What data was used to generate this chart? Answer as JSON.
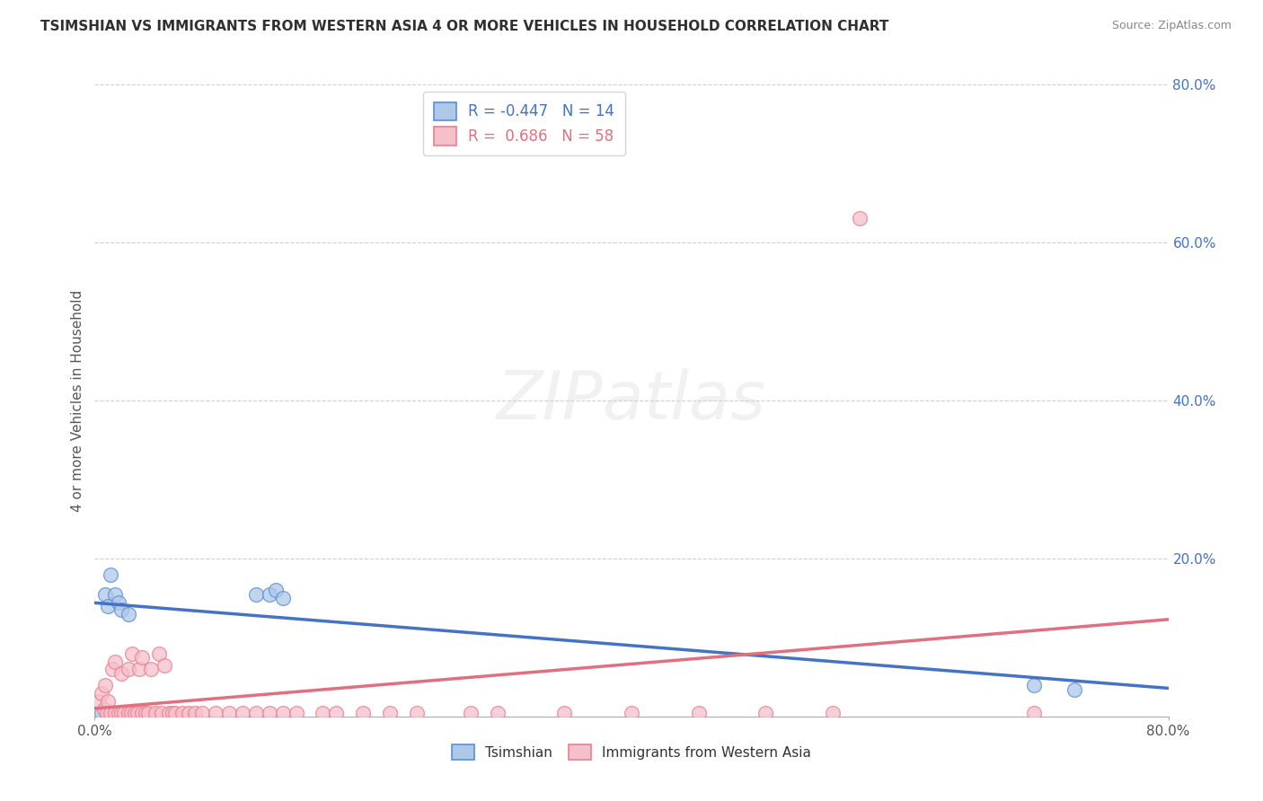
{
  "title": "TSIMSHIAN VS IMMIGRANTS FROM WESTERN ASIA 4 OR MORE VEHICLES IN HOUSEHOLD CORRELATION CHART",
  "source": "Source: ZipAtlas.com",
  "ylabel": "4 or more Vehicles in Household",
  "xlim": [
    0.0,
    0.8
  ],
  "ylim": [
    0.0,
    0.8
  ],
  "xtick_vals": [
    0.0,
    0.8
  ],
  "xtick_labels": [
    "0.0%",
    "80.0%"
  ],
  "ytick_vals_right": [
    0.2,
    0.4,
    0.6,
    0.8
  ],
  "ytick_labels_right": [
    "20.0%",
    "40.0%",
    "60.0%",
    "80.0%"
  ],
  "grid_vals": [
    0.2,
    0.4,
    0.6,
    0.8
  ],
  "series1_label": "Tsimshian",
  "series1_color": "#adc8e8",
  "series1_edge_color": "#5b8dd9",
  "series1_line_color": "#4472c4",
  "series1_R": -0.447,
  "series1_N": 14,
  "series2_label": "Immigrants from Western Asia",
  "series2_color": "#f5c0cb",
  "series2_edge_color": "#e8808e",
  "series2_line_color": "#e07080",
  "series2_R": 0.686,
  "series2_N": 58,
  "series1_x": [
    0.005,
    0.008,
    0.01,
    0.012,
    0.015,
    0.018,
    0.02,
    0.025,
    0.12,
    0.13,
    0.135,
    0.14,
    0.7,
    0.73
  ],
  "series1_y": [
    0.005,
    0.155,
    0.14,
    0.18,
    0.155,
    0.145,
    0.135,
    0.13,
    0.155,
    0.155,
    0.16,
    0.15,
    0.04,
    0.035
  ],
  "series2_x": [
    0.003,
    0.005,
    0.007,
    0.008,
    0.009,
    0.01,
    0.012,
    0.013,
    0.015,
    0.015,
    0.018,
    0.02,
    0.02,
    0.022,
    0.025,
    0.025,
    0.027,
    0.028,
    0.03,
    0.032,
    0.033,
    0.035,
    0.035,
    0.038,
    0.04,
    0.042,
    0.045,
    0.048,
    0.05,
    0.052,
    0.055,
    0.058,
    0.06,
    0.065,
    0.07,
    0.075,
    0.08,
    0.09,
    0.1,
    0.11,
    0.12,
    0.13,
    0.14,
    0.15,
    0.17,
    0.18,
    0.2,
    0.22,
    0.24,
    0.28,
    0.3,
    0.35,
    0.4,
    0.45,
    0.5,
    0.55,
    0.57,
    0.7
  ],
  "series2_y": [
    0.02,
    0.03,
    0.01,
    0.04,
    0.005,
    0.02,
    0.005,
    0.06,
    0.005,
    0.07,
    0.005,
    0.005,
    0.055,
    0.005,
    0.005,
    0.06,
    0.005,
    0.08,
    0.005,
    0.005,
    0.06,
    0.005,
    0.075,
    0.005,
    0.005,
    0.06,
    0.005,
    0.08,
    0.005,
    0.065,
    0.005,
    0.005,
    0.005,
    0.005,
    0.005,
    0.005,
    0.005,
    0.005,
    0.005,
    0.005,
    0.005,
    0.005,
    0.005,
    0.005,
    0.005,
    0.005,
    0.005,
    0.005,
    0.005,
    0.005,
    0.005,
    0.005,
    0.005,
    0.005,
    0.005,
    0.005,
    0.63,
    0.005
  ],
  "watermark_text": "ZIPatlas",
  "background_color": "#ffffff",
  "grid_color": "#d0d0d0",
  "title_color": "#303030",
  "source_color": "#888888",
  "ylabel_color": "#555555"
}
